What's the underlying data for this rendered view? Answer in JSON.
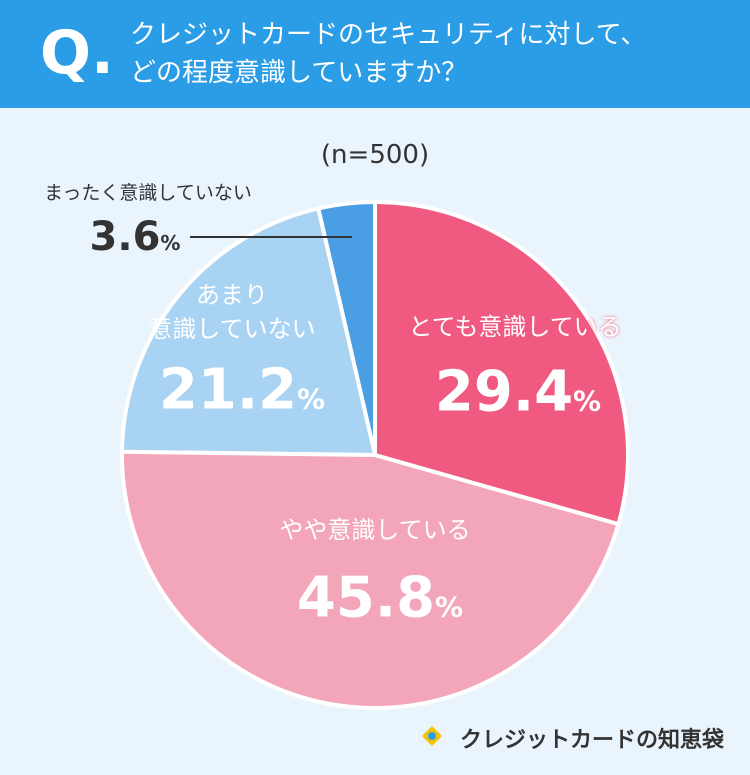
{
  "header": {
    "mark": "Q.",
    "title": "クレジットカードのセキュリティに対して、\nどの程度意識していますか？"
  },
  "chart_data": {
    "type": "pie",
    "subtitle": "(n=500)",
    "categories": [
      "とても意識している",
      "やや意識している",
      "あまり\n意識していない",
      "まったく意識していない"
    ],
    "values": [
      29.4,
      45.8,
      21.2,
      3.6
    ],
    "unit": "%",
    "colors": [
      "#f05a80",
      "#f3a6ba",
      "#a9d3f2",
      "#4a9ee3"
    ]
  },
  "brand": "クレジットカードの知恵袋"
}
